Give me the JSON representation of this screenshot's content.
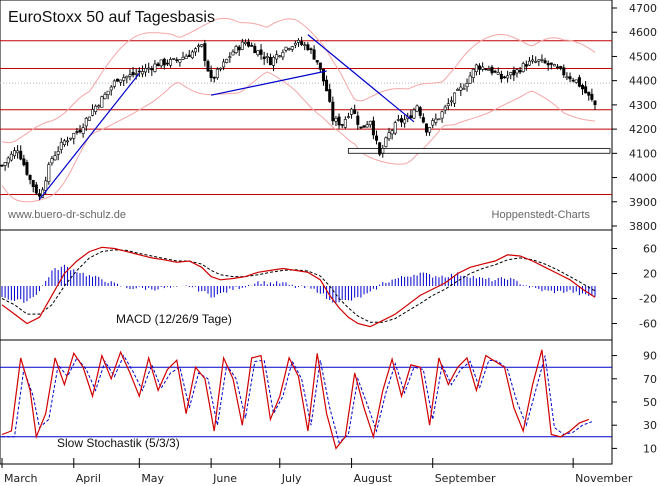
{
  "chart_data": [
    {
      "type": "candlestick",
      "title": "EuroStoxx 50 auf Tagesbasis",
      "watermark_left": "www.buero-dr-schulz.de",
      "watermark_right": "Hoppenstedt-Charts",
      "ylim": [
        3800,
        4700
      ],
      "yticks": [
        3800,
        3900,
        4000,
        4100,
        4200,
        4300,
        4400,
        4500,
        4600,
        4700
      ],
      "grid": false,
      "x_months": [
        "March",
        "April",
        "May",
        "June",
        "July",
        "August",
        "September",
        "November"
      ],
      "horizontal_levels": [
        3930,
        4200,
        4280,
        4450,
        4565
      ],
      "close_anchors": [
        [
          0,
          4050
        ],
        [
          5,
          4120
        ],
        [
          9,
          3990
        ],
        [
          12,
          3920
        ],
        [
          16,
          4080
        ],
        [
          20,
          4150
        ],
        [
          25,
          4200
        ],
        [
          29,
          4280
        ],
        [
          33,
          4340
        ],
        [
          37,
          4410
        ],
        [
          41,
          4420
        ],
        [
          45,
          4440
        ],
        [
          50,
          4470
        ],
        [
          55,
          4480
        ],
        [
          60,
          4510
        ],
        [
          64,
          4540
        ],
        [
          67,
          4400
        ],
        [
          70,
          4450
        ],
        [
          74,
          4520
        ],
        [
          78,
          4560
        ],
        [
          82,
          4520
        ],
        [
          86,
          4480
        ],
        [
          90,
          4530
        ],
        [
          94,
          4560
        ],
        [
          98,
          4540
        ],
        [
          101,
          4480
        ],
        [
          104,
          4360
        ],
        [
          106,
          4240
        ],
        [
          109,
          4220
        ],
        [
          112,
          4290
        ],
        [
          115,
          4200
        ],
        [
          118,
          4240
        ],
        [
          121,
          4090
        ],
        [
          124,
          4180
        ],
        [
          127,
          4230
        ],
        [
          130,
          4240
        ],
        [
          133,
          4300
        ],
        [
          136,
          4200
        ],
        [
          140,
          4250
        ],
        [
          144,
          4320
        ],
        [
          148,
          4380
        ],
        [
          152,
          4460
        ],
        [
          156,
          4450
        ],
        [
          160,
          4410
        ],
        [
          164,
          4430
        ],
        [
          168,
          4470
        ],
        [
          172,
          4480
        ],
        [
          176,
          4460
        ],
        [
          180,
          4430
        ],
        [
          184,
          4400
        ],
        [
          187,
          4350
        ],
        [
          190,
          4300
        ]
      ],
      "bollinger_band_width": 130,
      "trend_lines": [
        {
          "x1": 12,
          "y1": 3910,
          "x2": 44,
          "y2": 4430
        },
        {
          "x1": 67,
          "y1": 4340,
          "x2": 104,
          "y2": 4440
        },
        {
          "x1": 98,
          "y1": 4590,
          "x2": 132,
          "y2": 4230
        }
      ],
      "box": {
        "x1": 111,
        "x2": 190,
        "y1": 4100,
        "y2": 4120
      }
    },
    {
      "type": "line",
      "title": "MACD (12/26/9 Tage)",
      "ylim": [
        -80,
        80
      ],
      "yticks": [
        60,
        20,
        -20,
        -60
      ],
      "ytick_labels": [
        "60",
        "20",
        "-20",
        "-60"
      ],
      "series": [
        {
          "values": [
            [
              0,
              -30
            ],
            [
              4,
              -45
            ],
            [
              8,
              -60
            ],
            [
              12,
              -50
            ],
            [
              16,
              -15
            ],
            [
              20,
              20
            ],
            [
              24,
              40
            ],
            [
              28,
              55
            ],
            [
              32,
              62
            ],
            [
              36,
              60
            ],
            [
              40,
              55
            ],
            [
              44,
              50
            ],
            [
              48,
              45
            ],
            [
              52,
              42
            ],
            [
              56,
              38
            ],
            [
              60,
              40
            ],
            [
              64,
              30
            ],
            [
              67,
              15
            ],
            [
              70,
              10
            ],
            [
              74,
              12
            ],
            [
              78,
              15
            ],
            [
              82,
              22
            ],
            [
              86,
              25
            ],
            [
              90,
              28
            ],
            [
              94,
              25
            ],
            [
              98,
              22
            ],
            [
              102,
              10
            ],
            [
              105,
              -15
            ],
            [
              108,
              -35
            ],
            [
              111,
              -50
            ],
            [
              114,
              -60
            ],
            [
              118,
              -65
            ],
            [
              122,
              -55
            ],
            [
              126,
              -45
            ],
            [
              130,
              -30
            ],
            [
              134,
              -15
            ],
            [
              138,
              -5
            ],
            [
              142,
              5
            ],
            [
              146,
              20
            ],
            [
              150,
              30
            ],
            [
              154,
              35
            ],
            [
              158,
              40
            ],
            [
              162,
              50
            ],
            [
              166,
              48
            ],
            [
              170,
              40
            ],
            [
              174,
              30
            ],
            [
              178,
              20
            ],
            [
              182,
              10
            ],
            [
              186,
              -5
            ],
            [
              190,
              -18
            ]
          ]
        },
        {
          "values": [
            [
              0,
              -20
            ],
            [
              4,
              -30
            ],
            [
              8,
              -45
            ],
            [
              12,
              -45
            ],
            [
              16,
              -30
            ],
            [
              20,
              0
            ],
            [
              24,
              25
            ],
            [
              28,
              45
            ],
            [
              32,
              55
            ],
            [
              36,
              58
            ],
            [
              40,
              57
            ],
            [
              44,
              52
            ],
            [
              48,
              48
            ],
            [
              52,
              44
            ],
            [
              56,
              40
            ],
            [
              60,
              40
            ],
            [
              64,
              35
            ],
            [
              67,
              25
            ],
            [
              70,
              18
            ],
            [
              74,
              15
            ],
            [
              78,
              15
            ],
            [
              82,
              18
            ],
            [
              86,
              22
            ],
            [
              90,
              25
            ],
            [
              94,
              26
            ],
            [
              98,
              24
            ],
            [
              102,
              16
            ],
            [
              105,
              0
            ],
            [
              108,
              -20
            ],
            [
              111,
              -35
            ],
            [
              114,
              -48
            ],
            [
              118,
              -58
            ],
            [
              122,
              -58
            ],
            [
              126,
              -52
            ],
            [
              130,
              -40
            ],
            [
              134,
              -28
            ],
            [
              138,
              -15
            ],
            [
              142,
              -5
            ],
            [
              146,
              8
            ],
            [
              150,
              20
            ],
            [
              154,
              28
            ],
            [
              158,
              34
            ],
            [
              162,
              42
            ],
            [
              166,
              45
            ],
            [
              170,
              42
            ],
            [
              174,
              35
            ],
            [
              178,
              26
            ],
            [
              182,
              15
            ],
            [
              186,
              4
            ],
            [
              190,
              -8
            ]
          ]
        }
      ],
      "histogram": true
    },
    {
      "type": "line",
      "title": "Slow Stochastik (5/3/3)",
      "ylim": [
        0,
        100
      ],
      "yticks": [
        10,
        30,
        50,
        70,
        90
      ],
      "levels": [
        20,
        80
      ],
      "series": [
        {
          "values": [
            [
              0,
              22
            ],
            [
              3,
              25
            ],
            [
              6,
              88
            ],
            [
              9,
              60
            ],
            [
              11,
              20
            ],
            [
              14,
              40
            ],
            [
              17,
              88
            ],
            [
              20,
              65
            ],
            [
              23,
              92
            ],
            [
              26,
              80
            ],
            [
              29,
              55
            ],
            [
              32,
              90
            ],
            [
              35,
              70
            ],
            [
              38,
              93
            ],
            [
              41,
              75
            ],
            [
              44,
              55
            ],
            [
              47,
              88
            ],
            [
              50,
              60
            ],
            [
              53,
              78
            ],
            [
              56,
              86
            ],
            [
              59,
              40
            ],
            [
              62,
              80
            ],
            [
              65,
              70
            ],
            [
              68,
              25
            ],
            [
              71,
              88
            ],
            [
              74,
              70
            ],
            [
              77,
              30
            ],
            [
              80,
              88
            ],
            [
              83,
              90
            ],
            [
              86,
              35
            ],
            [
              89,
              55
            ],
            [
              92,
              88
            ],
            [
              95,
              72
            ],
            [
              98,
              25
            ],
            [
              101,
              92
            ],
            [
              104,
              40
            ],
            [
              107,
              10
            ],
            [
              110,
              20
            ],
            [
              113,
              75
            ],
            [
              116,
              45
            ],
            [
              119,
              20
            ],
            [
              122,
              60
            ],
            [
              125,
              87
            ],
            [
              128,
              55
            ],
            [
              131,
              82
            ],
            [
              134,
              80
            ],
            [
              137,
              30
            ],
            [
              140,
              88
            ],
            [
              143,
              65
            ],
            [
              146,
              80
            ],
            [
              149,
              88
            ],
            [
              152,
              60
            ],
            [
              155,
              90
            ],
            [
              158,
              85
            ],
            [
              161,
              80
            ],
            [
              164,
              45
            ],
            [
              167,
              25
            ],
            [
              170,
              65
            ],
            [
              173,
              95
            ],
            [
              176,
              22
            ],
            [
              179,
              20
            ],
            [
              182,
              25
            ],
            [
              185,
              32
            ],
            [
              188,
              35
            ]
          ]
        },
        {
          "values": [
            [
              0,
              20
            ],
            [
              4,
              20
            ],
            [
              7,
              78
            ],
            [
              10,
              55
            ],
            [
              12,
              28
            ],
            [
              15,
              35
            ],
            [
              18,
              82
            ],
            [
              21,
              72
            ],
            [
              24,
              88
            ],
            [
              27,
              78
            ],
            [
              30,
              60
            ],
            [
              33,
              85
            ],
            [
              36,
              72
            ],
            [
              39,
              90
            ],
            [
              42,
              76
            ],
            [
              45,
              60
            ],
            [
              48,
              82
            ],
            [
              51,
              62
            ],
            [
              54,
              75
            ],
            [
              57,
              80
            ],
            [
              60,
              45
            ],
            [
              63,
              75
            ],
            [
              66,
              70
            ],
            [
              69,
              30
            ],
            [
              72,
              82
            ],
            [
              75,
              70
            ],
            [
              78,
              36
            ],
            [
              81,
              85
            ],
            [
              84,
              86
            ],
            [
              87,
              40
            ],
            [
              90,
              55
            ],
            [
              93,
              85
            ],
            [
              96,
              70
            ],
            [
              99,
              30
            ],
            [
              102,
              86
            ],
            [
              105,
              45
            ],
            [
              108,
              15
            ],
            [
              111,
              22
            ],
            [
              114,
              70
            ],
            [
              117,
              48
            ],
            [
              120,
              25
            ],
            [
              123,
              58
            ],
            [
              126,
              83
            ],
            [
              129,
              58
            ],
            [
              132,
              80
            ],
            [
              135,
              78
            ],
            [
              138,
              35
            ],
            [
              141,
              82
            ],
            [
              144,
              65
            ],
            [
              147,
              78
            ],
            [
              150,
              85
            ],
            [
              153,
              62
            ],
            [
              156,
              86
            ],
            [
              159,
              85
            ],
            [
              162,
              78
            ],
            [
              165,
              50
            ],
            [
              168,
              30
            ],
            [
              171,
              60
            ],
            [
              174,
              90
            ],
            [
              177,
              28
            ],
            [
              180,
              22
            ],
            [
              183,
              24
            ],
            [
              186,
              30
            ],
            [
              189,
              33
            ]
          ]
        }
      ]
    }
  ]
}
